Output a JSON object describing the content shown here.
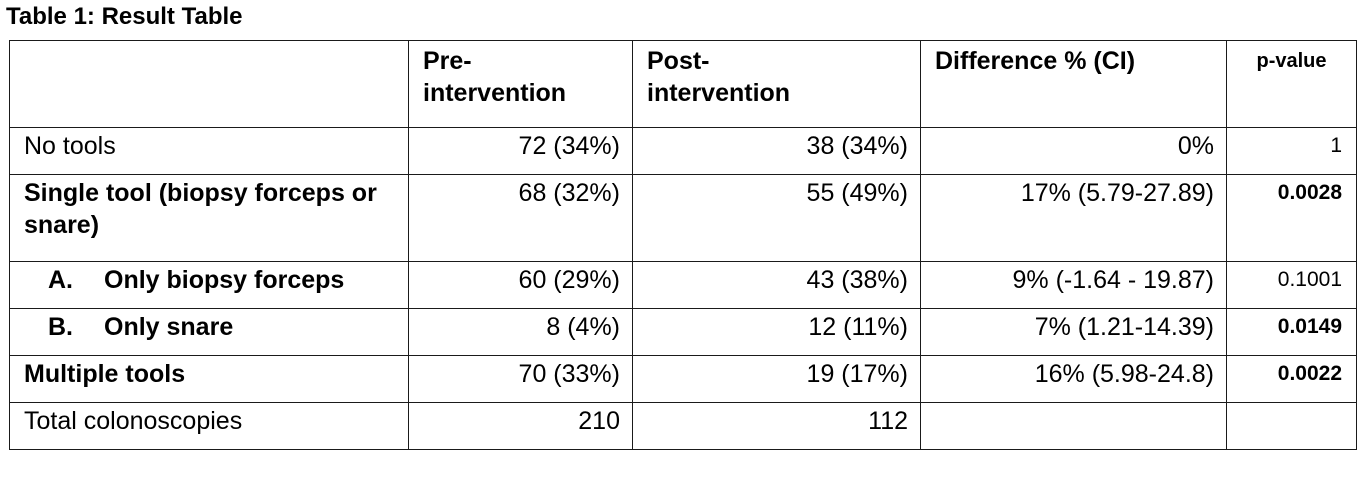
{
  "caption": "Table 1: Result Table",
  "columns": [
    "",
    "Pre-intervention",
    "Post-intervention",
    "Difference % (CI)",
    "p-value"
  ],
  "header": {
    "pre_line1": "Pre-",
    "pre_line2": "intervention",
    "post_line1": "Post-",
    "post_line2": "intervention",
    "difference": "Difference % (CI)",
    "pvalue": "p-value"
  },
  "rows": [
    {
      "label": "No tools",
      "pre": "72 (34%)",
      "post": "38 (34%)",
      "diff": "0%",
      "p": "1"
    },
    {
      "label": "Single tool (biopsy forceps or snare)",
      "pre": "68 (32%)",
      "post": "55 (49%)",
      "diff": "17% (5.79-27.89)",
      "p": "0.0028"
    },
    {
      "letter": "A.",
      "label": "Only biopsy forceps",
      "pre": "60 (29%)",
      "post": "43 (38%)",
      "diff": "9% (-1.64 - 19.87)",
      "p": "0.1001"
    },
    {
      "letter": "B.",
      "label": "Only snare",
      "pre": "8 (4%)",
      "post": "12 (11%)",
      "diff": "7% (1.21-14.39)",
      "p": "0.0149"
    },
    {
      "label": "Multiple tools",
      "pre": "70 (33%)",
      "post": "19 (17%)",
      "diff": "16% (5.98-24.8)",
      "p": "0.0022"
    },
    {
      "label": "Total colonoscopies",
      "pre": "210",
      "post": "112",
      "diff": "",
      "p": ""
    }
  ]
}
